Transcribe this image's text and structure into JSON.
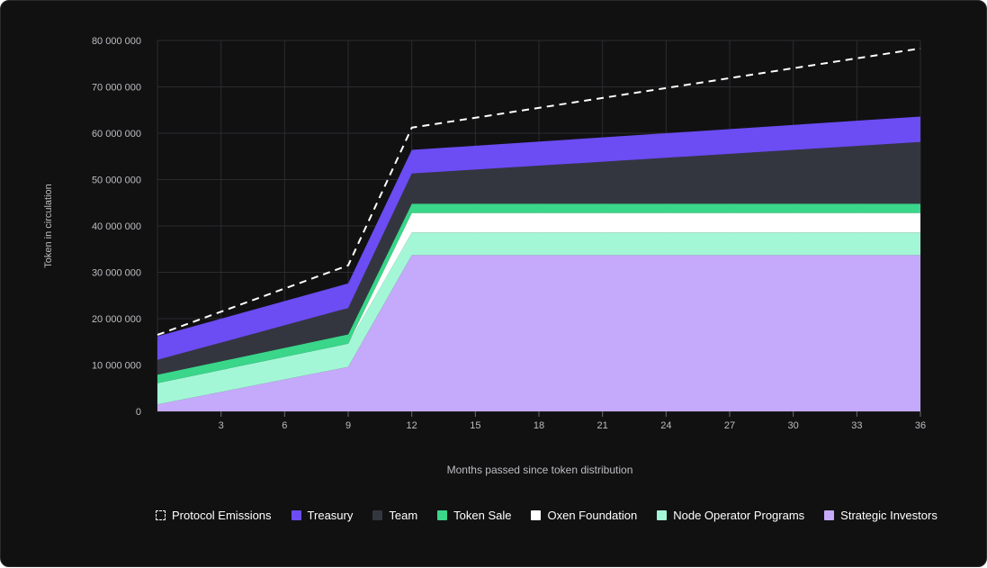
{
  "chart_data": {
    "type": "area",
    "stacked": true,
    "xlabel": "Months passed since token distribution",
    "ylabel": "Token in circulation",
    "x": [
      0,
      9,
      12,
      36
    ],
    "xlim": [
      0,
      36
    ],
    "ylim": [
      0,
      80000000
    ],
    "xticks": [
      3,
      6,
      9,
      12,
      15,
      18,
      21,
      24,
      27,
      30,
      33,
      36
    ],
    "xtick_labels": [
      "3",
      "6",
      "9",
      "12",
      "15",
      "18",
      "21",
      "24",
      "27",
      "30",
      "33",
      "36"
    ],
    "yticks": [
      0,
      10000000,
      20000000,
      30000000,
      40000000,
      50000000,
      60000000,
      70000000,
      80000000
    ],
    "ytick_labels": [
      "0",
      "10 000 000",
      "20 000 000",
      "30 000 000",
      "40 000 000",
      "50 000 000",
      "60 000 000",
      "70 000 000",
      "80 000 000"
    ],
    "grid": true,
    "legend_position": "bottom",
    "series": [
      {
        "name": "Strategic Investors",
        "color": "#c5a9fb",
        "values": [
          1500000,
          9600000,
          33700000,
          33700000
        ]
      },
      {
        "name": "Node Operator Programs",
        "color": "#a3f7d6",
        "values": [
          4600000,
          5000000,
          4900000,
          4900000
        ]
      },
      {
        "name": "Oxen Foundation",
        "color": "#ffffff",
        "values": [
          0,
          0,
          4200000,
          4200000
        ]
      },
      {
        "name": "Token Sale",
        "color": "#3ad68a",
        "values": [
          1800000,
          2000000,
          2000000,
          2000000
        ]
      },
      {
        "name": "Team",
        "color": "#34363f",
        "values": [
          3200000,
          5700000,
          6500000,
          13300000
        ]
      },
      {
        "name": "Treasury",
        "color": "#6c4cf3",
        "values": [
          5100000,
          5300000,
          5100000,
          5500000
        ]
      }
    ],
    "line_series": [
      {
        "name": "Protocol Emissions",
        "style": "dashed",
        "color": "#ffffff",
        "x": [
          0,
          9,
          12,
          36
        ],
        "values": [
          16500000,
          31500000,
          61200000,
          78300000
        ]
      }
    ],
    "legend": [
      {
        "label": "Protocol Emissions",
        "color": "#ffffff",
        "style": "dashed"
      },
      {
        "label": "Treasury",
        "color": "#6c4cf3",
        "style": "solid"
      },
      {
        "label": "Team",
        "color": "#34363f",
        "style": "solid"
      },
      {
        "label": "Token Sale",
        "color": "#3ad68a",
        "style": "solid"
      },
      {
        "label": "Oxen Foundation",
        "color": "#ffffff",
        "style": "solid"
      },
      {
        "label": "Node Operator Programs",
        "color": "#a3f7d6",
        "style": "solid"
      },
      {
        "label": "Strategic Investors",
        "color": "#c5a9fb",
        "style": "solid"
      }
    ]
  }
}
